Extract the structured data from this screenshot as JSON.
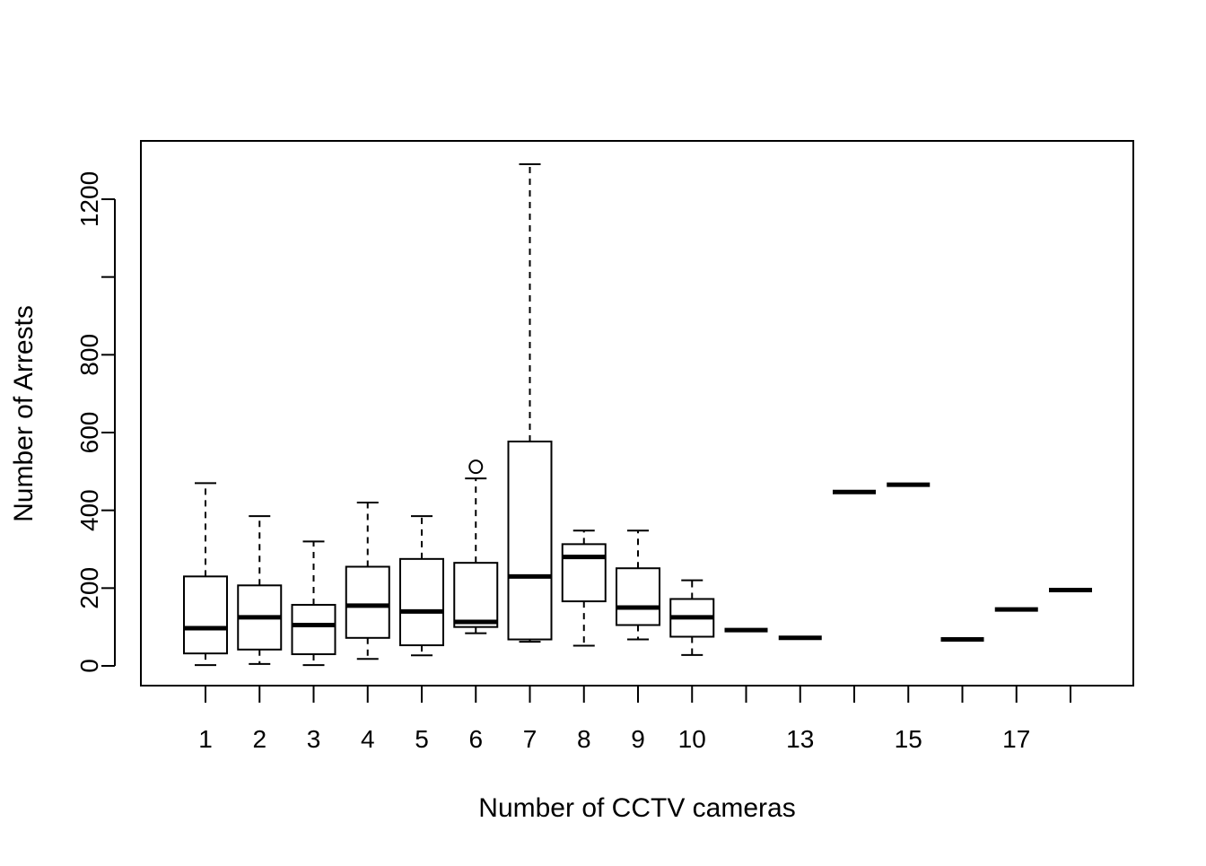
{
  "chart_data": {
    "type": "box",
    "xlabel": "Number of CCTV cameras",
    "ylabel": "Number of Arrests",
    "ylim": [
      -50,
      1350
    ],
    "y_ticks": [
      0,
      200,
      400,
      600,
      800,
      1000,
      1200
    ],
    "y_tick_labels": [
      "0",
      "200",
      "400",
      "600",
      "800",
      "",
      "1200"
    ],
    "categories": [
      "1",
      "2",
      "3",
      "4",
      "5",
      "6",
      "7",
      "8",
      "9",
      "10",
      "11",
      "13",
      "14",
      "15",
      "16",
      "17",
      "18"
    ],
    "x_tick_labels": [
      "1",
      "2",
      "3",
      "4",
      "5",
      "6",
      "7",
      "8",
      "9",
      "10",
      "",
      "13",
      "",
      "15",
      "",
      "17",
      ""
    ],
    "boxes": [
      {
        "min": 2,
        "q1": 32,
        "median": 97,
        "q3": 230,
        "max": 470,
        "outliers": []
      },
      {
        "min": 5,
        "q1": 42,
        "median": 125,
        "q3": 207,
        "max": 385,
        "outliers": []
      },
      {
        "min": 2,
        "q1": 30,
        "median": 105,
        "q3": 157,
        "max": 320,
        "outliers": []
      },
      {
        "min": 18,
        "q1": 72,
        "median": 155,
        "q3": 255,
        "max": 420,
        "outliers": []
      },
      {
        "min": 27,
        "q1": 53,
        "median": 140,
        "q3": 275,
        "max": 385,
        "outliers": []
      },
      {
        "min": 84,
        "q1": 100,
        "median": 113,
        "q3": 265,
        "max": 482,
        "outliers": [
          512
        ]
      },
      {
        "min": 62,
        "q1": 68,
        "median": 230,
        "q3": 577,
        "max": 1290,
        "outliers": []
      },
      {
        "min": 52,
        "q1": 166,
        "median": 280,
        "q3": 313,
        "max": 348,
        "outliers": []
      },
      {
        "min": 68,
        "q1": 105,
        "median": 150,
        "q3": 251,
        "max": 348,
        "outliers": []
      },
      {
        "min": 28,
        "q1": 75,
        "median": 125,
        "q3": 172,
        "max": 220,
        "outliers": []
      },
      {
        "min": 92,
        "q1": 92,
        "median": 92,
        "q3": 92,
        "max": 92,
        "outliers": []
      },
      {
        "min": 72,
        "q1": 72,
        "median": 72,
        "q3": 72,
        "max": 72,
        "outliers": []
      },
      {
        "min": 447,
        "q1": 447,
        "median": 447,
        "q3": 447,
        "max": 447,
        "outliers": []
      },
      {
        "min": 466,
        "q1": 466,
        "median": 466,
        "q3": 466,
        "max": 466,
        "outliers": []
      },
      {
        "min": 68,
        "q1": 68,
        "median": 68,
        "q3": 68,
        "max": 68,
        "outliers": []
      },
      {
        "min": 145,
        "q1": 145,
        "median": 145,
        "q3": 145,
        "max": 145,
        "outliers": []
      },
      {
        "min": 195,
        "q1": 195,
        "median": 195,
        "q3": 195,
        "max": 195,
        "outliers": []
      }
    ],
    "grid": false,
    "legend": "none"
  }
}
